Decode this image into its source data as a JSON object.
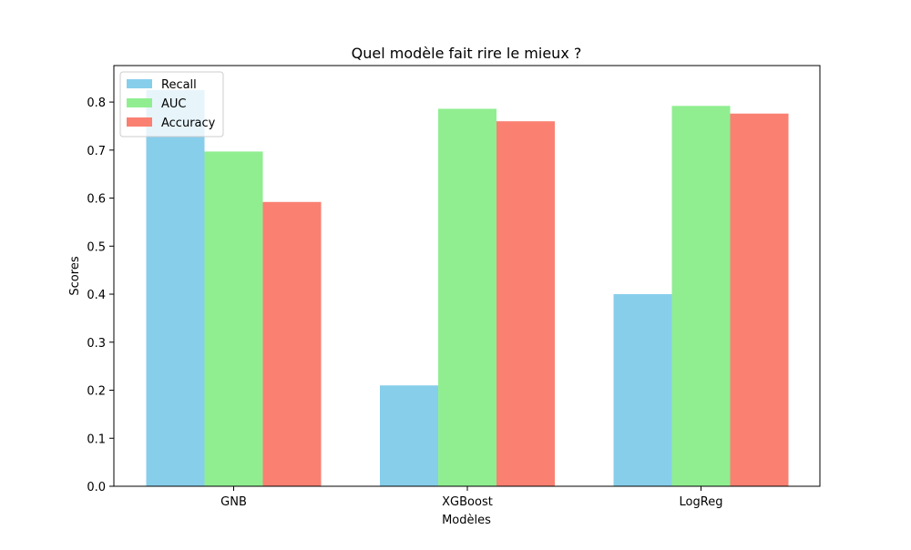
{
  "chart_data": {
    "type": "bar",
    "title": "Quel modèle fait rire le mieux ?",
    "xlabel": "Modèles",
    "ylabel": "Scores",
    "categories": [
      "GNB",
      "XGBoost",
      "LogReg"
    ],
    "series": [
      {
        "name": "Recall",
        "color": "#87ceeb",
        "values": [
          0.825,
          0.21,
          0.4
        ]
      },
      {
        "name": "AUC",
        "color": "#90ee90",
        "values": [
          0.697,
          0.786,
          0.792
        ]
      },
      {
        "name": "Accuracy",
        "color": "#fa8072",
        "values": [
          0.592,
          0.76,
          0.776
        ]
      }
    ],
    "ylim": [
      0,
      0.876
    ],
    "yticks": [
      0.0,
      0.1,
      0.2,
      0.3,
      0.4,
      0.5,
      0.6,
      0.7,
      0.8
    ],
    "ytick_labels": [
      "0.0",
      "0.1",
      "0.2",
      "0.3",
      "0.4",
      "0.5",
      "0.6",
      "0.7",
      "0.8"
    ],
    "grid": false,
    "legend_position": "top-left"
  }
}
